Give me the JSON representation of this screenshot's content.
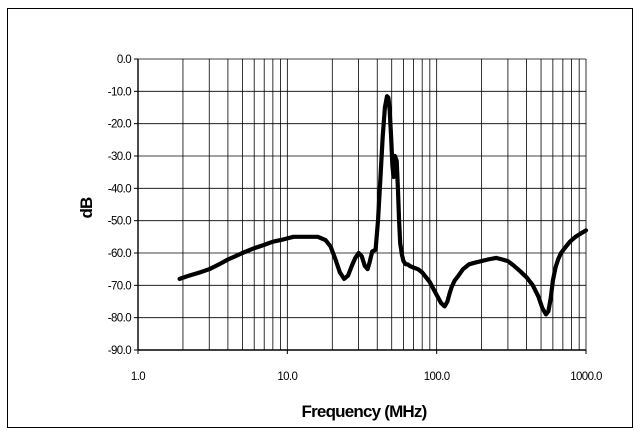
{
  "chart_data": {
    "type": "line",
    "title": "",
    "xlabel": "Frequency (MHz)",
    "ylabel": "dB",
    "x_scale": "log",
    "xlim": [
      1.0,
      1000.0
    ],
    "ylim": [
      -90.0,
      0.0
    ],
    "x_tick_labels": [
      "1.0",
      "10.0",
      "100.0",
      "1000.0"
    ],
    "y_tick_labels": [
      "0.0",
      "-10.0",
      "-20.0",
      "-30.0",
      "-40.0",
      "-50.0",
      "-60.0",
      "-70.0",
      "-80.0",
      "-90.0"
    ],
    "grid": true,
    "legend": "none",
    "line_color": "#000000",
    "series": [
      {
        "x": [
          1.9,
          2.2,
          2.6,
          3.0,
          3.5,
          4.0,
          4.5,
          5.0,
          6.0,
          7.0,
          8.0,
          9.0,
          10.0,
          11.0,
          12.0,
          14.0,
          16.0,
          18.0,
          19.5,
          21.0,
          22.5,
          24.0,
          25.5,
          27.0,
          28.5,
          30.0,
          31.5,
          33.0,
          34.5,
          35.5,
          37.0,
          39.0,
          40.5,
          42.0,
          43.5,
          45.0,
          46.5,
          47.5,
          48.5,
          49.5,
          50.5,
          51.5,
          52.5,
          54.0,
          55.0,
          56.0,
          57.0,
          58.5,
          60.0,
          62.0,
          64.0,
          66.0,
          70.0,
          75.0,
          80.0,
          90.0,
          100.0,
          107.0,
          113.0,
          118.0,
          122.0,
          126.0,
          132.0,
          140.0,
          150.0,
          165.0,
          180.0,
          200.0,
          220.0,
          250.0,
          275.0,
          300.0,
          330.0,
          360.0,
          400.0,
          440.0,
          480.0,
          510.0,
          540.0,
          560.0,
          580.0,
          600.0,
          625.0,
          650.0,
          680.0,
          720.0,
          780.0,
          850.0,
          920.0,
          1000.0
        ],
        "values": [
          -68,
          -67,
          -66,
          -65,
          -63.5,
          -62,
          -61,
          -60,
          -58.5,
          -57.5,
          -56.5,
          -56,
          -55.5,
          -55,
          -55,
          -55,
          -55,
          -56,
          -58,
          -62,
          -66,
          -68,
          -67,
          -64,
          -61.5,
          -60,
          -61,
          -64,
          -65,
          -63,
          -59.5,
          -59,
          -50,
          -37,
          -24,
          -15,
          -11.5,
          -12,
          -16,
          -24,
          -33,
          -36.5,
          -30,
          -31.5,
          -40,
          -50,
          -57,
          -60.5,
          -62.5,
          -63.5,
          -63.5,
          -64,
          -64.5,
          -65,
          -66,
          -69,
          -73,
          -75.5,
          -76.5,
          -75,
          -72.5,
          -70.5,
          -68.5,
          -67,
          -65,
          -63.5,
          -63,
          -62.5,
          -62,
          -61.5,
          -62,
          -62.5,
          -64,
          -65.5,
          -67.5,
          -70,
          -73.5,
          -77,
          -79,
          -78,
          -74,
          -68.5,
          -64.5,
          -62,
          -60,
          -58.5,
          -56.5,
          -55,
          -54,
          -53
        ]
      }
    ]
  }
}
